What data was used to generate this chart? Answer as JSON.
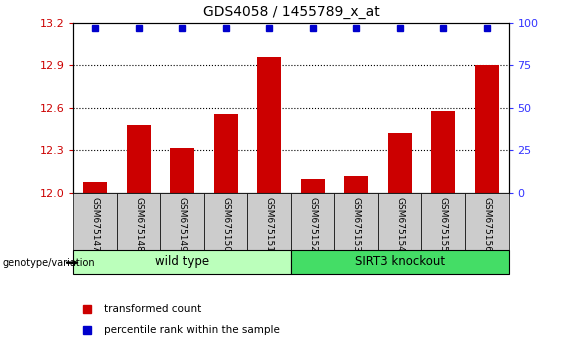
{
  "title": "GDS4058 / 1455789_x_at",
  "samples": [
    "GSM675147",
    "GSM675148",
    "GSM675149",
    "GSM675150",
    "GSM675151",
    "GSM675152",
    "GSM675153",
    "GSM675154",
    "GSM675155",
    "GSM675156"
  ],
  "bar_values": [
    12.08,
    12.48,
    12.32,
    12.56,
    12.96,
    12.1,
    12.12,
    12.42,
    12.58,
    12.9
  ],
  "ylim_left": [
    12,
    13.2
  ],
  "ylim_right": [
    0,
    100
  ],
  "yticks_left": [
    12,
    12.3,
    12.6,
    12.9,
    13.2
  ],
  "yticks_right": [
    0,
    25,
    50,
    75,
    100
  ],
  "bar_color": "#cc0000",
  "percentile_color": "#0000cc",
  "group1_label": "wild type",
  "group2_label": "SIRT3 knockout",
  "group1_color": "#bbffbb",
  "group2_color": "#44dd66",
  "ylabel_left_color": "#cc0000",
  "ylabel_right_color": "#3333ff",
  "legend_bar_label": "transformed count",
  "legend_percentile_label": "percentile rank within the sample",
  "genotype_label": "genotype/variation",
  "tick_bg_color": "#cccccc"
}
